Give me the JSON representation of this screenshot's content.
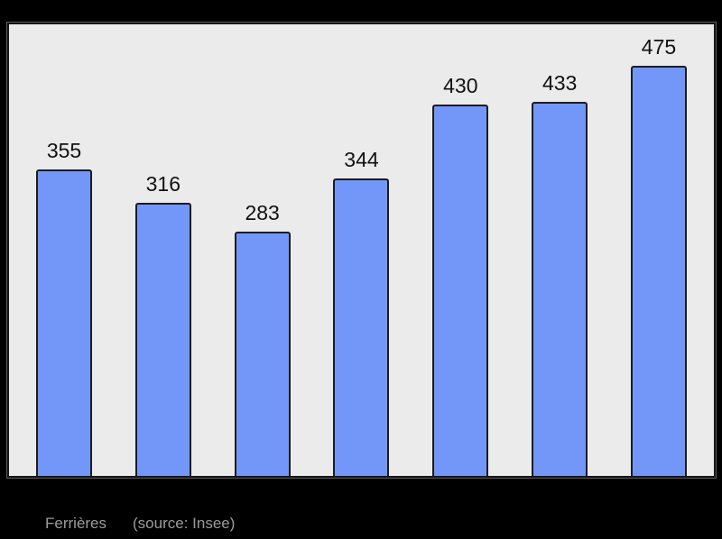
{
  "colors": {
    "background": "#000000",
    "plot_bg": "#ebebeb",
    "plot_border": "#141414",
    "bar_fill": "#7397f8",
    "bar_border": "#1c1c1c",
    "label_color": "#111111",
    "caption_color": "#9c9c9c"
  },
  "chart_data": {
    "type": "bar",
    "values": [
      355,
      316,
      283,
      344,
      430,
      433,
      475
    ],
    "data_labels": [
      "355",
      "316",
      "283",
      "344",
      "430",
      "433",
      "475"
    ],
    "title": "",
    "xlabel": "",
    "ylabel": "",
    "ylim": [
      0,
      523
    ],
    "grid": false,
    "legend": "none",
    "axis_tick_labels": "none",
    "data_labels_position": "above-bars"
  },
  "caption": {
    "place": "Ferrières",
    "source": "(source: Insee)"
  }
}
